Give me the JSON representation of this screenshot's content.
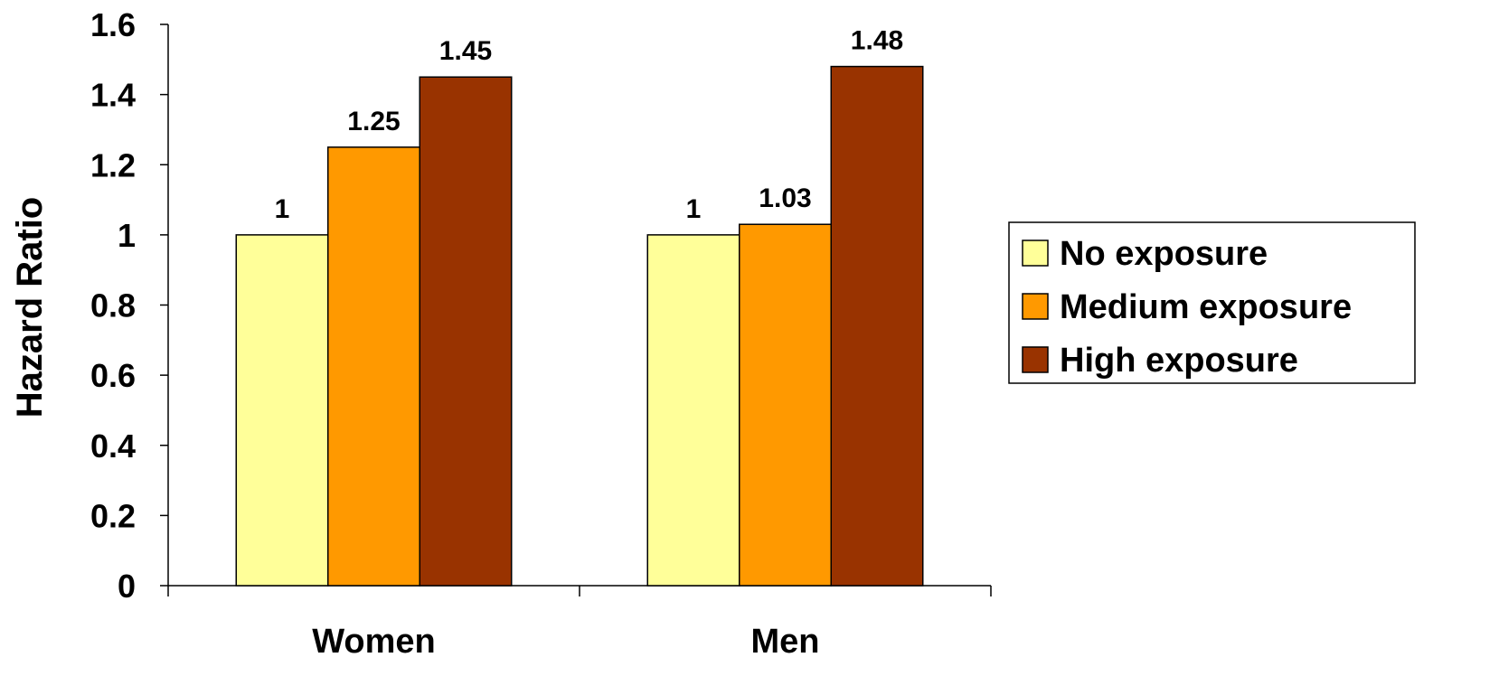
{
  "chart_data": {
    "type": "bar",
    "title": "",
    "xlabel": "",
    "ylabel": "Hazard Ratio",
    "categories": [
      "Women",
      "Men"
    ],
    "series": [
      {
        "name": "No exposure",
        "values": [
          1,
          1
        ],
        "value_labels": [
          "1",
          "1"
        ],
        "color": "#FFFF99"
      },
      {
        "name": "Medium exposure",
        "values": [
          1.25,
          1.03
        ],
        "value_labels": [
          "1.25",
          "1.03"
        ],
        "color": "#FF9900"
      },
      {
        "name": "High exposure",
        "values": [
          1.45,
          1.48
        ],
        "value_labels": [
          "1.45",
          "1.48"
        ],
        "color": "#993300"
      }
    ],
    "ylim": [
      0,
      1.6
    ],
    "yticks": [
      0,
      0.2,
      0.4,
      0.6,
      0.8,
      1,
      1.2,
      1.4,
      1.6
    ],
    "ytick_labels": [
      "0",
      "0.2",
      "0.4",
      "0.6",
      "0.8",
      "1",
      "1.2",
      "1.4",
      "1.6"
    ],
    "grid": false,
    "legend_position": "right",
    "bar_border_color": "#000000"
  }
}
